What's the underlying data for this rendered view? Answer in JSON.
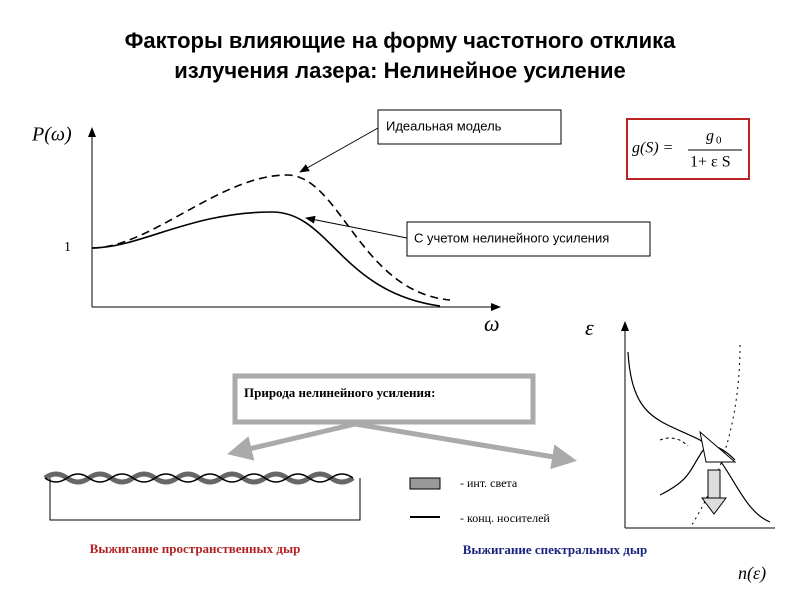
{
  "header": {
    "title_line1": "Факторы влияющие на форму частотного отклика",
    "title_line2": "излучения лазера: Нелинейное усиление"
  },
  "plot": {
    "y_label": "P(ω)",
    "y_tick": "1",
    "x_label": "ω",
    "ideal_label": "Идеальная модель",
    "nonlinear_label": "С учетом нелинейного усиления"
  },
  "formula": {
    "lhs": "g(S) =",
    "numerator": "g",
    "numerator_sub": "0",
    "denominator": "1+ ε S"
  },
  "nature_box": "Природа нелинейного усиления:",
  "legend": {
    "light": "- инт. света",
    "carriers": "- конц. носителей"
  },
  "spatial_caption": "Выжигание пространственных дыр",
  "spectral_caption": "Выжигание спектральных дыр",
  "spectrum_plot": {
    "y_label": "ε",
    "x_label": "n(ε)"
  }
}
